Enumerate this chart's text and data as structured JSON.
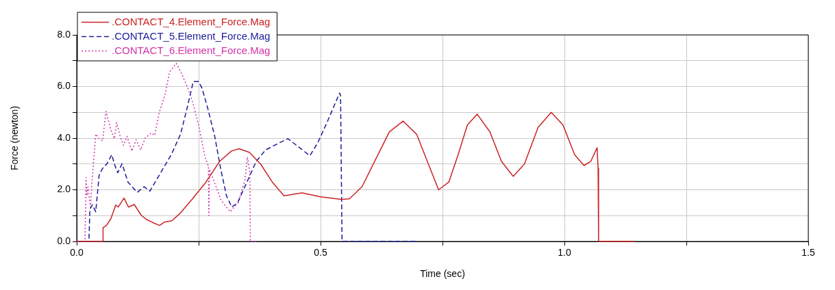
{
  "chart_data": {
    "type": "line",
    "xlabel": "Time (sec)",
    "ylabel": "Force (newton)",
    "xlim": [
      0,
      1.5
    ],
    "ylim": [
      0,
      8
    ],
    "xticks": [
      {
        "value": 0,
        "label": "0.0"
      },
      {
        "value": 0.25,
        "label": null
      },
      {
        "value": 0.5,
        "label": "0.5"
      },
      {
        "value": 0.75,
        "label": null
      },
      {
        "value": 1,
        "label": "1.0"
      },
      {
        "value": 1.25,
        "label": null
      },
      {
        "value": 1.5,
        "label": "1.5"
      }
    ],
    "yticks": [
      {
        "value": 0,
        "label": "0.0"
      },
      {
        "value": 1,
        "label": null
      },
      {
        "value": 2,
        "label": "2.0"
      },
      {
        "value": 3,
        "label": null
      },
      {
        "value": 4,
        "label": "4.0"
      },
      {
        "value": 5,
        "label": null
      },
      {
        "value": 6,
        "label": "6.0"
      },
      {
        "value": 7,
        "label": null
      },
      {
        "value": 8,
        "label": "8.0"
      }
    ],
    "grid": true,
    "legend": "top left",
    "marker": "none",
    "series": [
      {
        "name": ".CONTACT_4.Element_Force.Mag",
        "color": "#cc2222",
        "line_style": "solid",
        "x": [
          0,
          0.054,
          0.054,
          0.061,
          0.07,
          0.08,
          0.085,
          0.097,
          0.106,
          0.118,
          0.132,
          0.144,
          0.156,
          0.17,
          0.18,
          0.195,
          0.213,
          0.237,
          0.265,
          0.293,
          0.317,
          0.333,
          0.354,
          0.377,
          0.401,
          0.425,
          0.462,
          0.5,
          0.542,
          0.559,
          0.585,
          0.613,
          0.641,
          0.669,
          0.697,
          0.721,
          0.742,
          0.763,
          0.782,
          0.801,
          0.821,
          0.847,
          0.871,
          0.895,
          0.918,
          0.946,
          0.973,
          0.997,
          1.021,
          1.04,
          1.054,
          1.067,
          1.069,
          1.07,
          1.144
        ],
        "values": [
          0,
          0,
          0.53,
          0.62,
          0.88,
          1.41,
          1.33,
          1.68,
          1.33,
          1.43,
          1.02,
          0.84,
          0.73,
          0.62,
          0.75,
          0.8,
          1.11,
          1.64,
          2.3,
          3.1,
          3.5,
          3.59,
          3.45,
          3.0,
          2.3,
          1.77,
          1.88,
          1.73,
          1.63,
          1.65,
          2.12,
          3.18,
          4.24,
          4.66,
          4.15,
          3.0,
          2.0,
          2.3,
          3.36,
          4.51,
          4.93,
          4.25,
          3.1,
          2.52,
          3.0,
          4.42,
          5.0,
          4.51,
          3.36,
          2.94,
          3.1,
          3.63,
          2.83,
          0,
          0
        ]
      },
      {
        "name": ".CONTACT_5.Element_Force.Mag",
        "color": "#1a1a99",
        "line_style": "dashed",
        "x": [
          0,
          0.025,
          0.027,
          0.032,
          0.039,
          0.046,
          0.053,
          0.062,
          0.072,
          0.077,
          0.084,
          0.093,
          0.105,
          0.124,
          0.138,
          0.15,
          0.161,
          0.18,
          0.194,
          0.213,
          0.227,
          0.239,
          0.25,
          0.257,
          0.269,
          0.283,
          0.295,
          0.307,
          0.318,
          0.33,
          0.349,
          0.368,
          0.387,
          0.405,
          0.433,
          0.457,
          0.478,
          0.494,
          0.513,
          0.539,
          0.541,
          0.544,
          0.701
        ],
        "values": [
          0,
          0,
          1.24,
          1.42,
          1.15,
          2.57,
          2.83,
          3.01,
          3.36,
          3.01,
          2.66,
          3.01,
          2.3,
          1.9,
          2.12,
          1.95,
          2.3,
          2.92,
          3.36,
          4.16,
          5.22,
          6.19,
          6.19,
          5.93,
          5.13,
          4.07,
          2.83,
          1.77,
          1.33,
          1.5,
          2.3,
          3.1,
          3.54,
          3.72,
          3.98,
          3.63,
          3.32,
          3.81,
          4.6,
          5.75,
          5.66,
          0,
          0
        ]
      },
      {
        "name": ".CONTACT_6.Element_Force.Mag",
        "color": "#d633aa",
        "line_style": "dotted",
        "x": [
          0,
          0.017,
          0.019,
          0.021,
          0.023,
          0.028,
          0.032,
          0.039,
          0.046,
          0.053,
          0.06,
          0.07,
          0.077,
          0.082,
          0.089,
          0.096,
          0.103,
          0.113,
          0.122,
          0.131,
          0.141,
          0.153,
          0.16,
          0.169,
          0.181,
          0.19,
          0.204,
          0.214,
          0.228,
          0.239,
          0.251,
          0.263,
          0.27,
          0.271,
          0.272,
          0.284,
          0.296,
          0.315,
          0.331,
          0.345,
          0.35,
          0.355,
          0.356,
          0.373
        ],
        "values": [
          0,
          0,
          2.48,
          1.77,
          2.12,
          1.33,
          2.48,
          4.16,
          3.98,
          3.89,
          5.04,
          4.33,
          3.98,
          4.6,
          4.07,
          3.72,
          4.07,
          3.5,
          3.94,
          3.54,
          4.02,
          4.2,
          4.11,
          4.99,
          5.66,
          6.54,
          6.9,
          6.54,
          5.93,
          5.31,
          4.42,
          3.27,
          2.92,
          1.0,
          2.8,
          2.21,
          1.59,
          1.15,
          1.5,
          2.38,
          3.27,
          2.65,
          0,
          0
        ]
      }
    ]
  }
}
